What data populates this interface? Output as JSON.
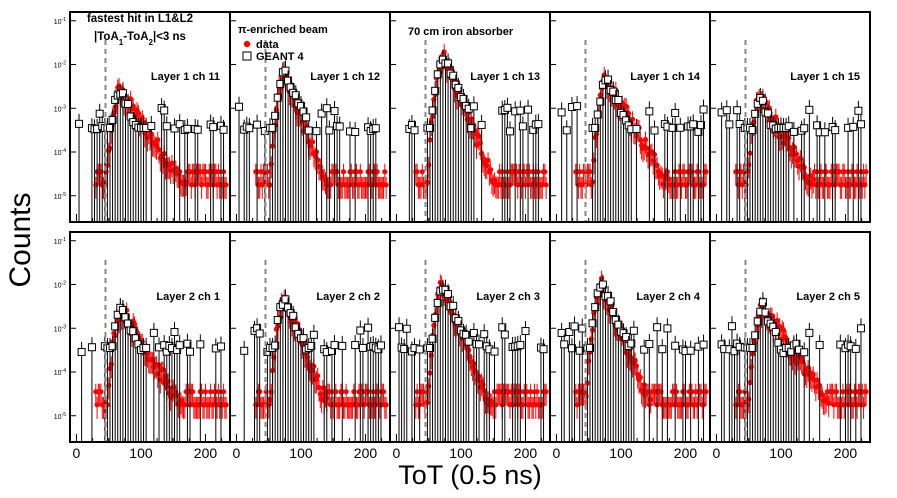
{
  "chart_data": {
    "type": "scatter",
    "title": "",
    "xlabel": "ToT (0.5 ns)",
    "ylabel": "Counts",
    "xlim": [
      -10,
      238
    ],
    "ylim_log10": [
      -5.6,
      -0.8
    ],
    "x_ticks": [
      0,
      100,
      200
    ],
    "y_ticks": [
      "10^{-1}",
      "10^{-2}",
      "10^{-3}",
      "10^{-4}",
      "10^{-5}"
    ],
    "y_tick_values": [
      -1,
      -2,
      -3,
      -4,
      -5
    ],
    "threshold_x": 45,
    "legend": {
      "beam": "π-enriched beam",
      "data_label": "data",
      "mc_label": "GEANT 4",
      "absorber": "70 cm iron absorber"
    },
    "selection": {
      "line1": "fastest hit in L1&L2",
      "line2": "|ToA",
      "sub1": "1",
      "mid": "-ToA",
      "sub2": "2",
      "end": "|<3 ns"
    },
    "colors": {
      "data": "#ff0000",
      "mc": "#000000",
      "threshold": "#888888"
    },
    "panels": [
      {
        "label": "Layer 1 ch 11",
        "peak_x": 68,
        "peak_log": -2.6,
        "tail": 1.0
      },
      {
        "label": "Layer 1 ch 12",
        "peak_x": 75,
        "peak_log": -2.2,
        "tail": 0.55
      },
      {
        "label": "Layer 1 ch 13",
        "peak_x": 73,
        "peak_log": -1.8,
        "tail": 0.6
      },
      {
        "label": "Layer 1 ch 14",
        "peak_x": 78,
        "peak_log": -2.3,
        "tail": 0.85
      },
      {
        "label": "Layer 1 ch 15",
        "peak_x": 68,
        "peak_log": -2.75,
        "tail": 0.9
      },
      {
        "label": "Layer 2 ch 1",
        "peak_x": 70,
        "peak_log": -2.55,
        "tail": 0.9
      },
      {
        "label": "Layer 2 ch 2",
        "peak_x": 75,
        "peak_log": -2.35,
        "tail": 0.6
      },
      {
        "label": "Layer 2 ch 3",
        "peak_x": 72,
        "peak_log": -2.05,
        "tail": 0.6
      },
      {
        "label": "Layer 2 ch 4",
        "peak_x": 70,
        "peak_log": -2.0,
        "tail": 0.6
      },
      {
        "label": "Layer 2 ch 5",
        "peak_x": 72,
        "peak_log": -2.5,
        "tail": 1.0
      }
    ]
  }
}
